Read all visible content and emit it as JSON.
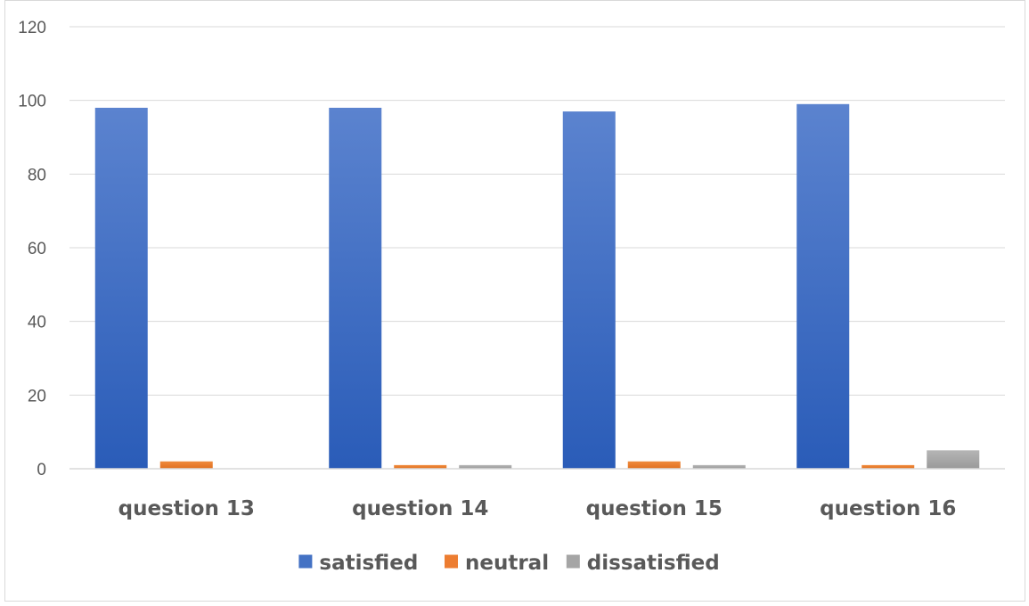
{
  "chart_data": {
    "type": "bar",
    "categories": [
      "question 13",
      "question 14",
      "question 15",
      "question 16"
    ],
    "series": [
      {
        "name": "satisfied",
        "color": "#4472c4",
        "values": [
          98,
          98,
          97,
          99
        ]
      },
      {
        "name": "neutral",
        "color": "#ed7d31",
        "values": [
          2,
          1,
          2,
          1
        ]
      },
      {
        "name": "dissatisfied",
        "color": "#a5a5a5",
        "values": [
          0,
          1,
          1,
          5
        ]
      }
    ],
    "ylim": [
      0,
      120
    ],
    "yticks": [
      0,
      20,
      40,
      60,
      80,
      100,
      120
    ],
    "title": "",
    "xlabel": "",
    "ylabel": "",
    "grid": true,
    "legend_position": "bottom"
  }
}
